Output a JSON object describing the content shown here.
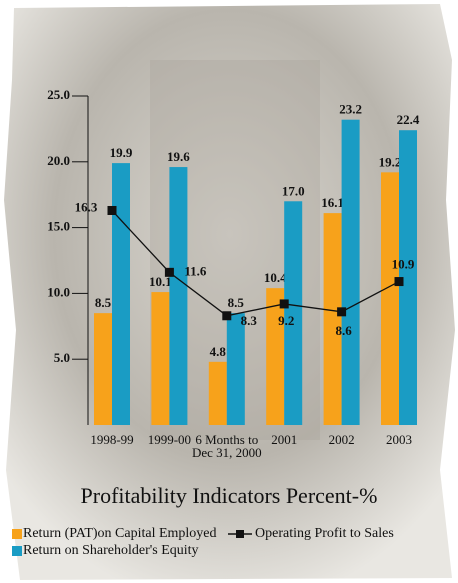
{
  "chart_data": {
    "type": "bar",
    "title": "Profitability Indicators Percent-%",
    "categories": [
      "1998-99",
      "1999-00",
      "6 Months to\nDec 31, 2000",
      "2001",
      "2002",
      "2003"
    ],
    "series": [
      {
        "name": "Return (PAT)on Capital Employed",
        "type": "bar",
        "color": "#f7a21b",
        "values": [
          8.5,
          10.1,
          4.8,
          10.4,
          16.1,
          19.2
        ],
        "value_labels": [
          "8.5",
          "10.1",
          "4.8",
          "10.4",
          "16.1",
          "19.2"
        ]
      },
      {
        "name": "Return on  Shareholder's Equity",
        "type": "bar",
        "color": "#1a9cc4",
        "values": [
          19.9,
          19.6,
          8.5,
          17.0,
          23.2,
          22.4
        ],
        "value_labels": [
          "19.9",
          "19.6",
          "8.5",
          "17.0",
          "23.2",
          "22.4"
        ]
      },
      {
        "name": "Operating Profit to Sales",
        "type": "line",
        "color": "#111111",
        "values": [
          16.3,
          11.6,
          8.3,
          9.2,
          8.6,
          10.9
        ],
        "value_labels": [
          "16.3",
          "11.6",
          "8.3",
          "9.2",
          "8.6",
          "10.9"
        ]
      }
    ],
    "ylim": [
      0,
      25
    ],
    "yticks": [
      {
        "value": 5,
        "label": "5.0"
      },
      {
        "value": 10,
        "label": "10.0"
      },
      {
        "value": 15,
        "label": "15.0"
      },
      {
        "value": 20,
        "label": "20.0"
      },
      {
        "value": 25,
        "label": "25.0"
      }
    ]
  }
}
